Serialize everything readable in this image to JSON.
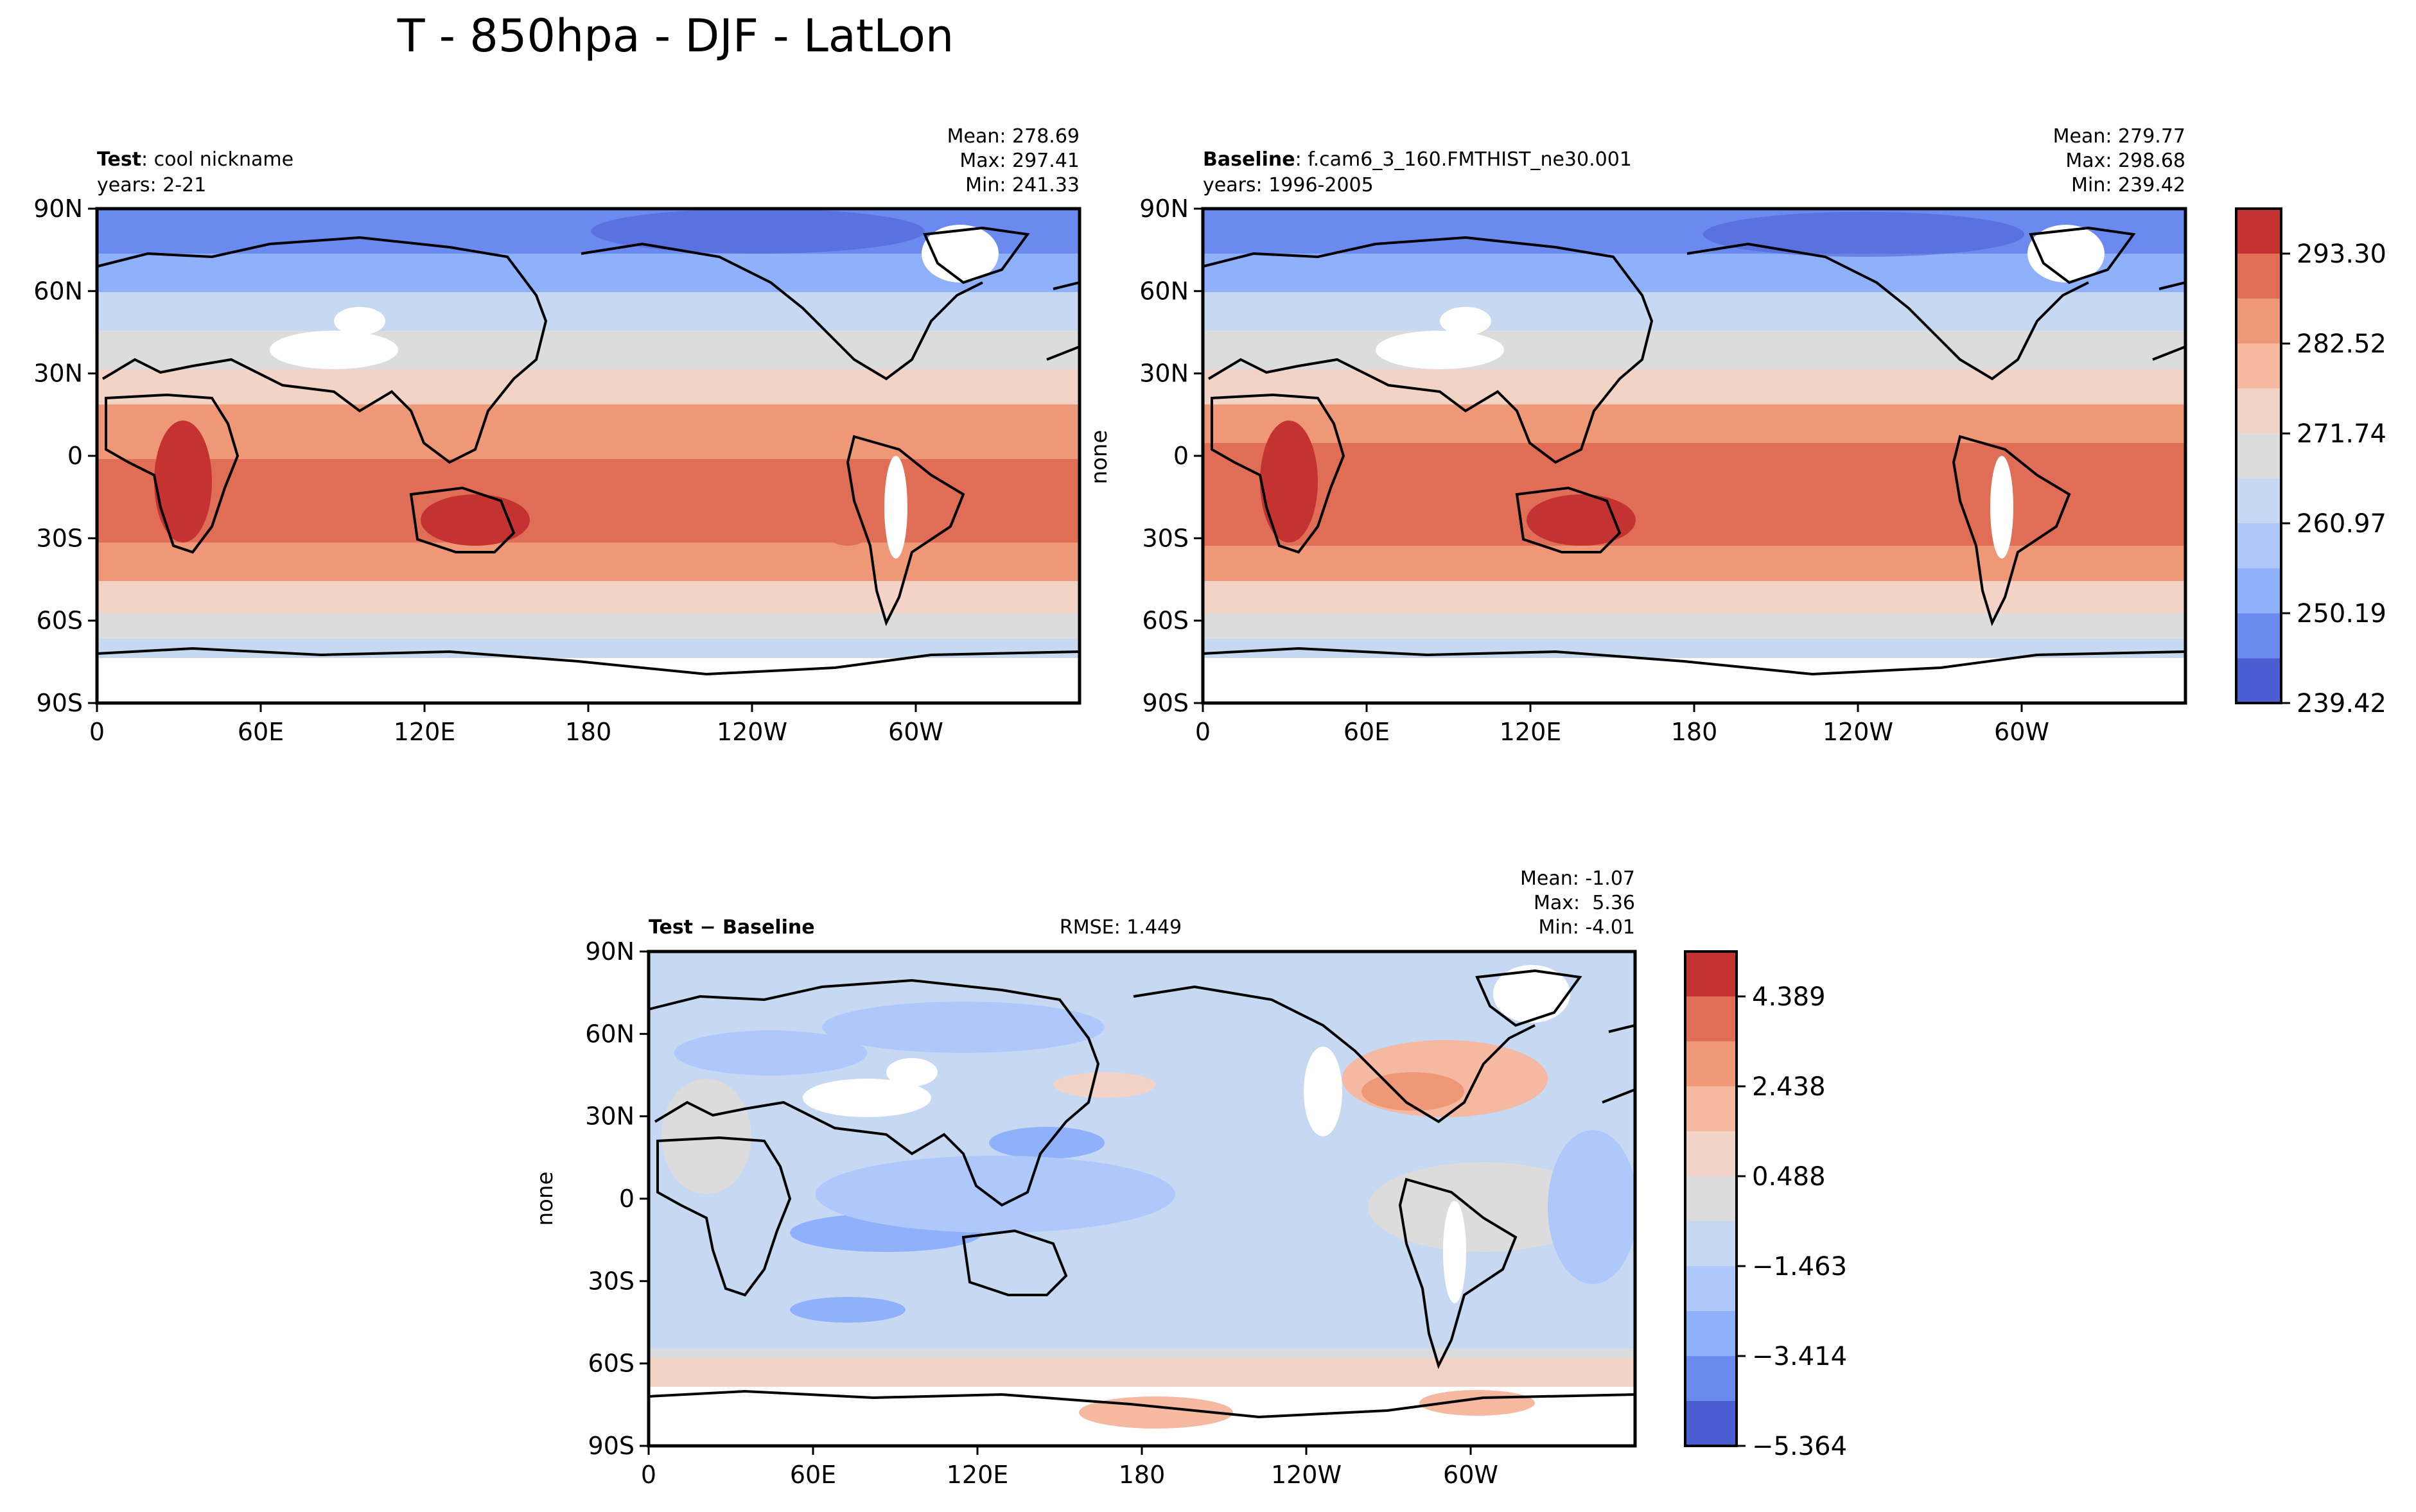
{
  "figure": {
    "title": "T - 850hpa - DJF - LatLon"
  },
  "panels": {
    "test": {
      "label_bold": "Test",
      "label_rest": ": cool nickname",
      "years": "years: 2-21",
      "mean": "Mean: 278.69",
      "max": "Max: 297.41",
      "min": "Min: 241.33",
      "ylabel": ""
    },
    "baseline": {
      "label_bold": "Baseline",
      "label_rest": ": f.cam6_3_160.FMTHIST_ne30.001",
      "years": "years: 1996-2005",
      "mean": "Mean: 279.77",
      "max": "Max: 298.68",
      "min": "Min: 239.42",
      "ylabel": "none"
    },
    "diff": {
      "label": "Test − Baseline",
      "rmse": "RMSE: 1.449",
      "mean": "Mean: -1.07",
      "max": "Max:  5.36",
      "min": "Min: -4.01",
      "ylabel": "none"
    }
  },
  "chart_data": [
    {
      "type": "heatmap",
      "id": "test",
      "title": "Test: cool nickname",
      "x_ticks": [
        "0",
        "60E",
        "120E",
        "180",
        "120W",
        "60W"
      ],
      "x_tick_values": [
        0,
        60,
        120,
        180,
        240,
        300
      ],
      "y_ticks": [
        "90N",
        "60N",
        "30N",
        "0",
        "30S",
        "60S",
        "90S"
      ],
      "y_tick_values": [
        90,
        60,
        30,
        0,
        -30,
        -60,
        -90
      ],
      "xlim": [
        0,
        360
      ],
      "ylim": [
        -90,
        90
      ],
      "colormap": "coolwarm",
      "stats": {
        "mean": 278.69,
        "max": 297.41,
        "min": 241.33
      }
    },
    {
      "type": "heatmap",
      "id": "baseline",
      "title": "Baseline: f.cam6_3_160.FMTHIST_ne30.001",
      "x_ticks": [
        "0",
        "60E",
        "120E",
        "180",
        "120W",
        "60W"
      ],
      "x_tick_values": [
        0,
        60,
        120,
        180,
        240,
        300
      ],
      "y_ticks": [
        "90N",
        "60N",
        "30N",
        "0",
        "30S",
        "60S",
        "90S"
      ],
      "y_tick_values": [
        90,
        60,
        30,
        0,
        -30,
        -60,
        -90
      ],
      "xlim": [
        0,
        360
      ],
      "ylim": [
        -90,
        90
      ],
      "ylabel": "none",
      "colormap": "coolwarm",
      "stats": {
        "mean": 279.77,
        "max": 298.68,
        "min": 239.42
      },
      "colorbar": {
        "levels": [
          239.42,
          244.8,
          250.19,
          255.58,
          260.97,
          266.36,
          271.74,
          277.13,
          282.52,
          287.91,
          293.3,
          298.69
        ],
        "tick_labels": [
          "293.30",
          "282.52",
          "271.74",
          "260.97",
          "250.19",
          "239.42"
        ],
        "tick_values": [
          293.3,
          282.52,
          271.74,
          260.97,
          250.19,
          239.42
        ],
        "colors": [
          "#4a5ed2",
          "#6a8af0",
          "#8fb0fb",
          "#aec8fb",
          "#c7d8f3",
          "#dcdcdc",
          "#f2d3c6",
          "#f5b8a0",
          "#ee9878",
          "#e06d55",
          "#c43232"
        ]
      }
    },
    {
      "type": "heatmap",
      "id": "diff",
      "title": "Test − Baseline",
      "x_ticks": [
        "0",
        "60E",
        "120E",
        "180",
        "120W",
        "60W"
      ],
      "x_tick_values": [
        0,
        60,
        120,
        180,
        240,
        300
      ],
      "y_ticks": [
        "90N",
        "60N",
        "30N",
        "0",
        "30S",
        "60S",
        "90S"
      ],
      "y_tick_values": [
        90,
        60,
        30,
        0,
        -30,
        -60,
        -90
      ],
      "xlim": [
        0,
        360
      ],
      "ylim": [
        -90,
        90
      ],
      "ylabel": "none",
      "colormap": "coolwarm",
      "stats": {
        "mean": -1.07,
        "max": 5.36,
        "min": -4.01,
        "rmse": 1.449
      },
      "colorbar": {
        "levels": [
          -5.364,
          -4.389,
          -3.414,
          -2.438,
          -1.463,
          -0.488,
          0.488,
          1.463,
          2.438,
          3.414,
          4.389,
          5.364
        ],
        "tick_labels": [
          "4.389",
          "2.438",
          "0.488",
          "−1.463",
          "−3.414",
          "−5.364"
        ],
        "tick_values": [
          4.389,
          2.438,
          0.488,
          -1.463,
          -3.414,
          -5.364
        ],
        "colors": [
          "#4a5ed2",
          "#6a8af0",
          "#8fb0fb",
          "#aec8fb",
          "#c7d8f3",
          "#dcdcdc",
          "#f2d3c6",
          "#f5b8a0",
          "#ee9878",
          "#e06d55",
          "#c43232"
        ]
      }
    }
  ]
}
